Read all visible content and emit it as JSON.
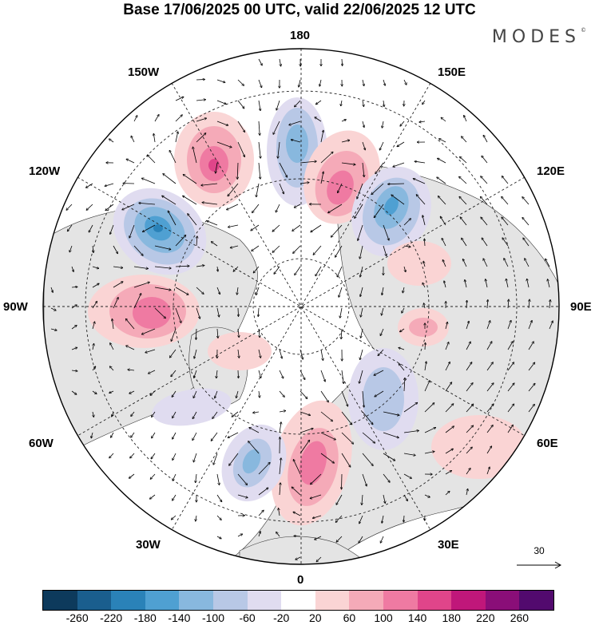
{
  "title": "Base 17/06/2025 00 UTC, valid 22/06/2025 12 UTC",
  "brand": "MODES",
  "brand_mark": "©",
  "longitude_labels": {
    "n180": "180",
    "w150": "150W",
    "e150": "150E",
    "w120": "120W",
    "e120": "120E",
    "w90": "90W",
    "e90": "90E",
    "w60": "60W",
    "e60": "60E",
    "w30": "30W",
    "e30": "30E",
    "s0": "0"
  },
  "reference_vector_label": "30",
  "colorbar": {
    "colors": [
      "#0d3a5c",
      "#1a5e8e",
      "#2a82b8",
      "#4fa0d2",
      "#88b8de",
      "#b8c8e6",
      "#e0dcf0",
      "#ffffff",
      "#fad4d4",
      "#f5aab8",
      "#ef7aa2",
      "#e0458a",
      "#c0177a",
      "#8a0e78",
      "#520a6e"
    ],
    "ticks": [
      "-260",
      "-220",
      "-180",
      "-140",
      "-100",
      "-60",
      "-20",
      "20",
      "60",
      "100",
      "140",
      "180",
      "220",
      "260"
    ]
  },
  "colors": {
    "land": "#e8e8e8",
    "ocean": "#ffffff",
    "positive": "#f0a0b8",
    "negative": "#6a98c8"
  }
}
